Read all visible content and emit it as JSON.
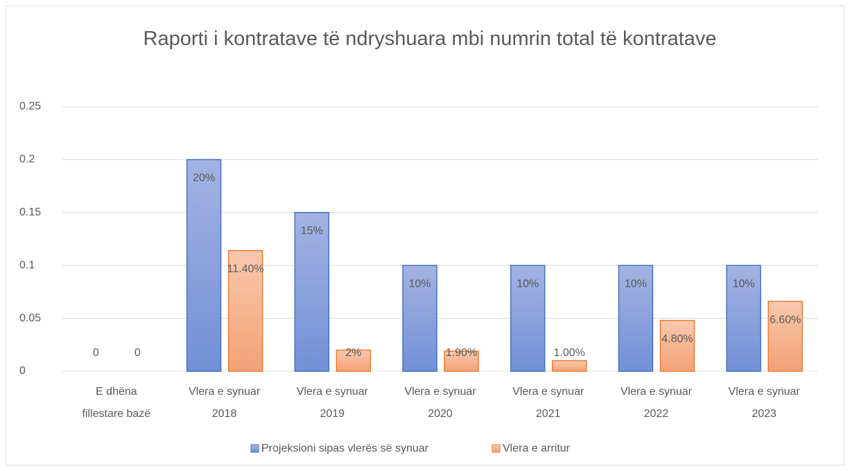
{
  "chart_data": {
    "type": "bar",
    "title": "Raporti i kontratave të ndryshuara mbi numrin total të kontratave",
    "categories": [
      [
        "E dhëna",
        "fillestare bazë"
      ],
      [
        "Vlera e synuar",
        "2018"
      ],
      [
        "Vlera e synuar",
        "2019"
      ],
      [
        "Vlera e synuar",
        "2020"
      ],
      [
        "Vlera e synuar",
        "2021"
      ],
      [
        "Vlera e synuar",
        "2022"
      ],
      [
        "Vlera e synuar",
        "2023"
      ]
    ],
    "series": [
      {
        "name": "Projeksioni sipas vlerës së synuar",
        "color": "#4472c4",
        "values": [
          0,
          0.2,
          0.15,
          0.1,
          0.1,
          0.1,
          0.1
        ],
        "value_labels": [
          "0",
          "20%",
          "15%",
          "10%",
          "10%",
          "10%",
          "10%"
        ]
      },
      {
        "name": "Vlera e arritur",
        "color": "#ed7d31",
        "values": [
          0,
          0.114,
          0.02,
          0.019,
          0.01,
          0.048,
          0.066
        ],
        "value_labels": [
          "0",
          "11.40%",
          "2%",
          "1.90%",
          "1.00%",
          "4.80%",
          "6.60%"
        ]
      }
    ],
    "ylim": [
      0,
      0.25
    ],
    "yticks": [
      0,
      0.05,
      0.1,
      0.15,
      0.2,
      0.25
    ],
    "grid": true,
    "legend": "bottom"
  }
}
